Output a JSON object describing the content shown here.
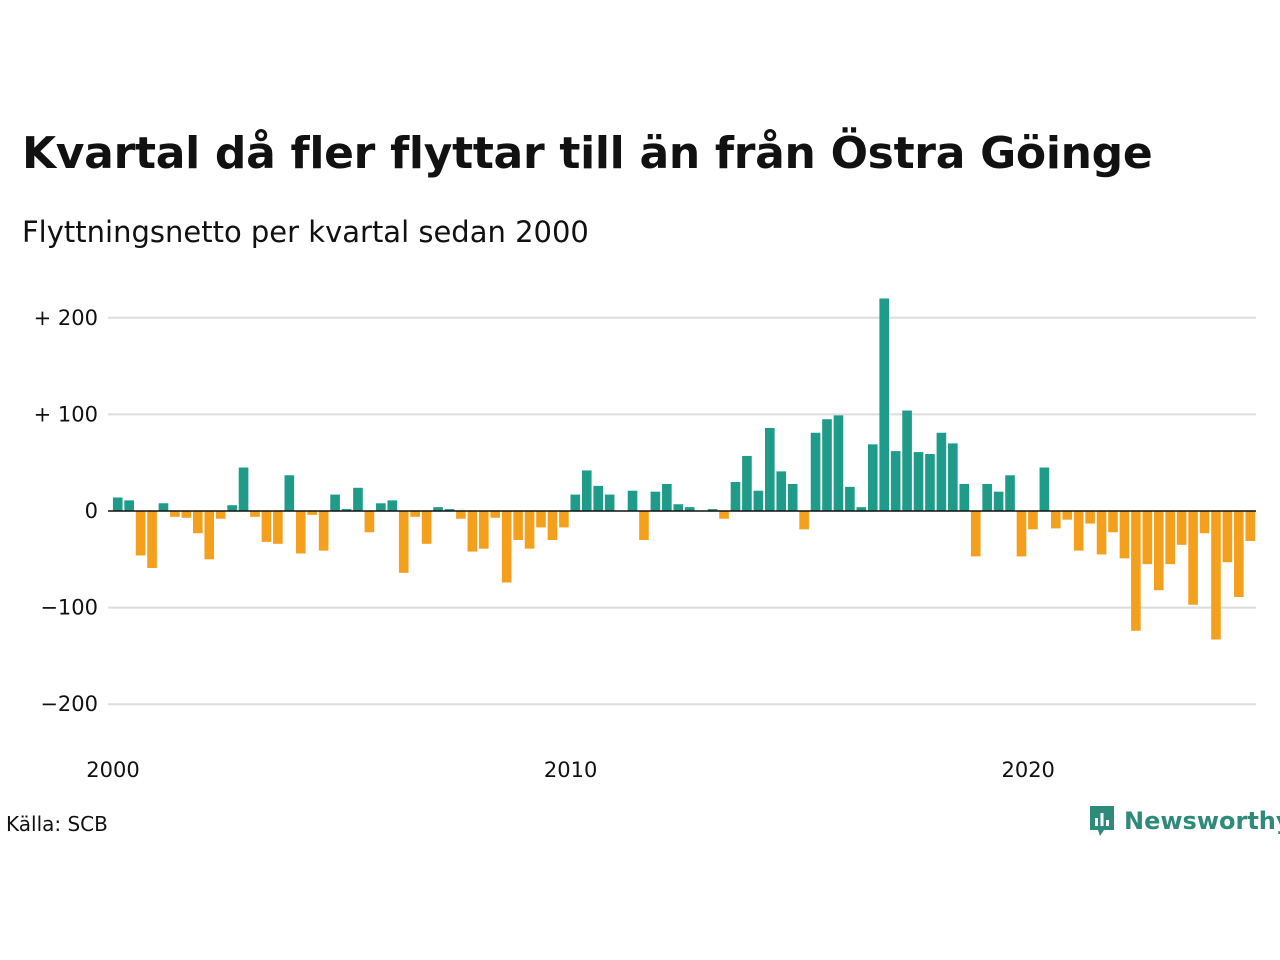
{
  "title": "Kvartal då fler flyttar till än från Östra Göinge",
  "subtitle": "Flyttningsnetto per kvartal sedan 2000",
  "source": "Källa: SCB",
  "brand": "Newsworthy",
  "colors": {
    "positive": "#1f9b8a",
    "negative": "#f5a01d",
    "grid": "#dddddd",
    "zero": "#111111",
    "brand": "#2e8b7a"
  },
  "chart_data": {
    "type": "bar",
    "grid": true,
    "ylim": [
      -230,
      225
    ],
    "yticks": [
      {
        "value": 200,
        "label": "+ 200"
      },
      {
        "value": 100,
        "label": "+ 100"
      },
      {
        "value": 0,
        "label": "0"
      },
      {
        "value": -100,
        "label": "−100"
      },
      {
        "value": -200,
        "label": "−200"
      }
    ],
    "xticks": [
      {
        "value": 2000,
        "label": "2000"
      },
      {
        "value": 2010,
        "label": "2010"
      },
      {
        "value": 2020,
        "label": "2020"
      }
    ],
    "series": [
      {
        "start": "2000 Q1",
        "values": [
          14,
          11,
          -46,
          -59,
          8,
          -6,
          -7,
          -23,
          -50,
          -8,
          6,
          45,
          -6,
          -32,
          -34,
          37,
          -44,
          -4,
          -41,
          17,
          2,
          24,
          -22,
          8,
          11,
          -64,
          -6,
          -34,
          4,
          2,
          -8,
          -42,
          -39,
          -7,
          -74,
          -30,
          -39,
          -17,
          -30,
          -17,
          17,
          42,
          26,
          17,
          0,
          21,
          -30,
          20,
          28,
          7,
          4,
          0,
          2,
          -8,
          30,
          57,
          21,
          86,
          41,
          28,
          -19,
          81,
          95,
          99,
          25,
          4,
          69,
          220,
          62,
          104,
          61,
          59,
          81,
          70,
          28,
          -47,
          28,
          20,
          37,
          -47,
          -19,
          45,
          -18,
          -9,
          -41,
          -13,
          -45,
          -22,
          -49,
          -124,
          -55,
          -82,
          -55,
          -35,
          -97,
          -23,
          -133,
          -53,
          -89,
          -31
        ]
      }
    ]
  }
}
